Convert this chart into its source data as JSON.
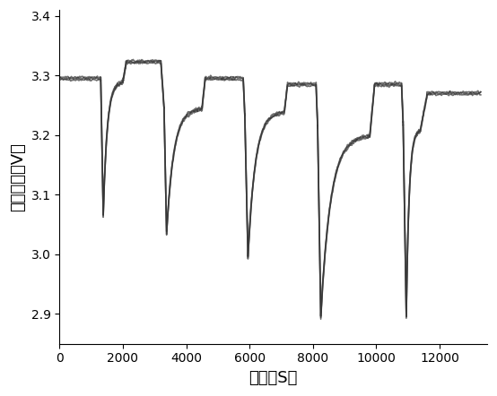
{
  "title": "",
  "xlabel": "时间（S）",
  "ylabel": "单体电压（V）",
  "xlim": [
    0,
    13500
  ],
  "ylim": [
    2.85,
    3.41
  ],
  "xticks": [
    0,
    2000,
    4000,
    6000,
    8000,
    10000,
    12000
  ],
  "yticks": [
    2.9,
    3.0,
    3.1,
    3.2,
    3.3,
    3.4
  ],
  "line_color": "#333333",
  "line_width": 1.2,
  "background_color": "#ffffff"
}
